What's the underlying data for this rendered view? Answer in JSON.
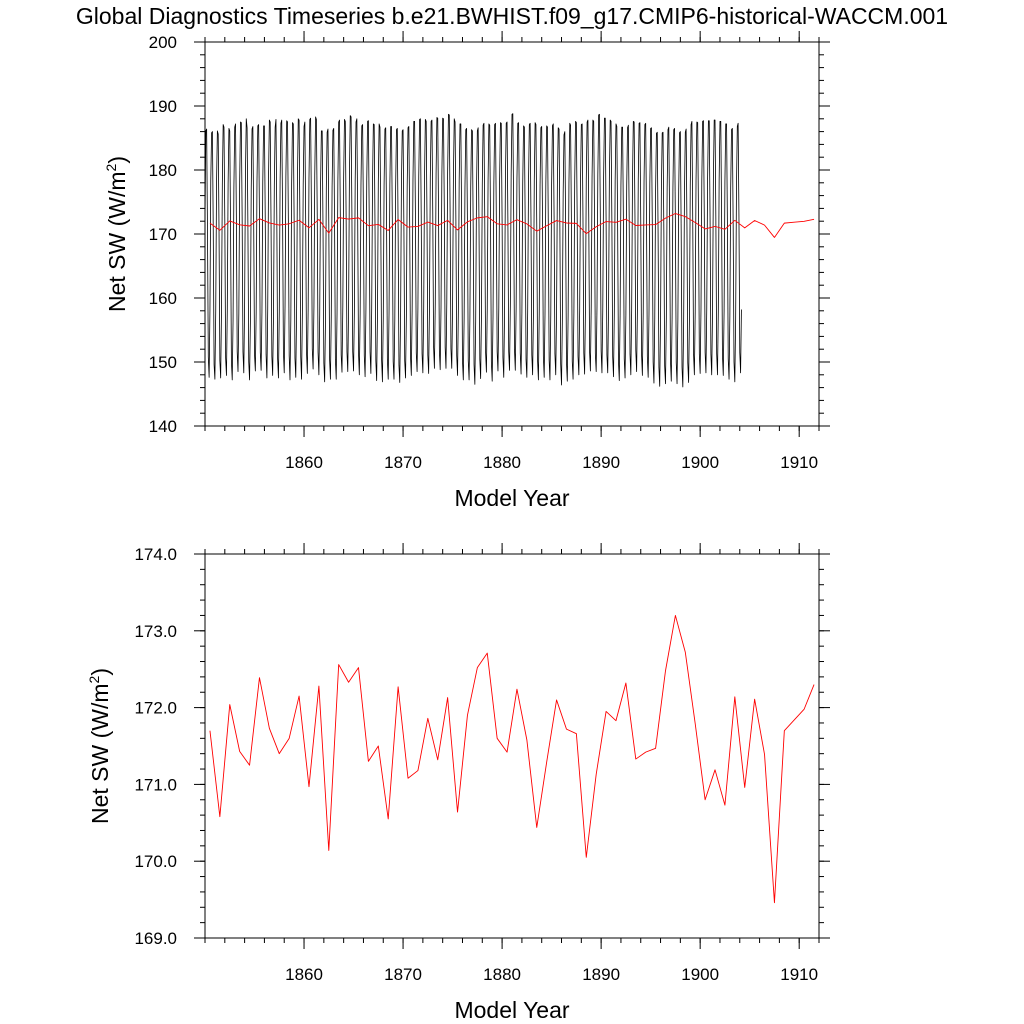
{
  "title": "Global Diagnostics Timeseries b.e21.BWHIST.f09_g17.CMIP6-historical-WACCM.001",
  "colors": {
    "monthly": "#000000",
    "annual": "#ff0000",
    "axis": "#000000"
  },
  "chart_data": [
    {
      "type": "line",
      "xlabel": "Model Year",
      "ylabel": "Net SW (W/m",
      "ylabel_sup": "2",
      "ylabel_tail": ")",
      "xlim": [
        1850,
        1912
      ],
      "ylim": [
        140,
        200
      ],
      "xticks": [
        "1860",
        "1870",
        "1880",
        "1890",
        "1900",
        "1910"
      ],
      "yticks": [
        "140",
        "150",
        "160",
        "170",
        "180",
        "190",
        "200"
      ],
      "series": [
        {
          "color": "#000000",
          "x_start": 1850.0,
          "x_step": 0.0833333,
          "values": [
            171.7,
            186.1,
            186.4,
            170.4,
            150.8,
            147.6,
            158.2,
            178.5,
            185.8,
            186.0,
            170.6,
            149.6,
            147.3,
            157.9,
            178.1,
            186.1,
            185.6,
            170.4,
            150.2,
            147.5,
            158.4,
            177.8,
            187.1,
            186.7,
            172.0,
            150.6,
            147.9,
            158.0,
            177.9,
            186.5,
            186.1,
            170.2,
            150.1,
            147.2,
            156.4,
            177.1,
            186.7,
            187.2,
            172.8,
            151.6,
            148.5,
            157.6,
            178.1,
            187.5,
            187.4,
            172.7,
            151.6,
            148.3,
            159.0,
            179.3,
            188.0,
            186.6,
            171.0,
            150.0,
            147.2,
            156.2,
            177.0,
            186.4,
            186.8,
            171.8,
            151.2,
            148.6,
            157.7,
            178.3,
            186.9,
            187.1,
            172.3,
            151.5,
            148.7,
            157.8,
            178.1,
            186.9,
            186.9,
            172.7,
            151.2,
            147.5,
            158.2,
            179.2,
            187.8,
            187.5,
            172.1,
            150.9,
            147.9,
            157.3,
            177.6,
            186.7,
            187.9,
            172.7,
            150.5,
            147.5,
            157.8,
            178.2,
            187.3,
            187.8,
            173.0,
            151.6,
            148.3,
            158.9,
            179.0,
            187.7,
            187.5,
            172.3,
            151.0,
            147.2,
            156.7,
            177.9,
            187.4,
            187.2,
            172.1,
            150.6,
            147.6,
            157.8,
            178.3,
            188.0,
            187.8,
            172.1,
            150.8,
            147.3,
            157.6,
            177.8,
            186.8,
            187.5,
            172.2,
            151.5,
            148.2,
            158.3,
            178.7,
            187.9,
            188.1,
            173.2,
            152.0,
            148.9,
            158.7,
            179.3,
            188.3,
            187.9,
            172.8,
            151.5,
            148.0,
            157.4,
            177.4,
            186.1,
            186.1,
            171.0,
            149.8,
            146.9,
            156.5,
            177.0,
            185.9,
            186.4,
            171.6,
            150.3,
            147.3,
            157.1,
            177.3,
            186.2,
            186.5,
            171.6,
            150.4,
            147.3,
            157.6,
            178.3,
            187.5,
            187.8,
            172.4,
            151.1,
            148.4,
            158.7,
            178.9,
            187.9,
            187.6,
            172.7,
            151.6,
            148.5,
            158.6,
            179.1,
            188.5,
            188.3,
            173.3,
            151.6,
            148.6,
            157.9,
            178.5,
            187.5,
            188.0,
            172.7,
            151.4,
            148.0,
            157.5,
            177.8,
            186.9,
            187.1,
            172.4,
            151.0,
            147.7,
            158.2,
            178.5,
            187.6,
            187.7,
            172.4,
            151.6,
            148.2,
            158.4,
            178.2,
            187.2,
            187.1,
            171.3,
            150.2,
            147.1,
            157.5,
            178.0,
            187.2,
            186.7,
            171.7,
            150.3,
            146.9,
            156.8,
            177.6,
            186.4,
            186.6,
            171.9,
            150.4,
            147.3,
            157.6,
            177.7,
            186.8,
            186.8,
            171.5,
            150.1,
            147.3,
            156.6,
            177.4,
            186.3,
            186.5,
            170.8,
            149.5,
            146.8,
            157.1,
            177.5,
            186.1,
            186.3,
            171.2,
            150.2,
            147.5,
            157.2,
            177.5,
            186.6,
            186.8,
            171.9,
            150.9,
            147.9,
            158.1,
            178.5,
            187.6,
            187.6,
            172.7,
            151.4,
            148.5,
            158.5,
            178.9,
            187.9,
            188.0,
            172.7,
            151.3,
            148.3,
            158.3,
            178.8,
            187.9,
            187.6,
            172.3,
            151.1,
            148.2,
            158.6,
            178.8,
            187.6,
            187.8,
            173.1,
            152.3,
            149.0,
            159.0,
            179.4,
            188.2,
            188.1,
            172.9,
            151.8,
            148.8,
            158.6,
            179.1,
            188.1,
            188.0,
            173.3,
            152.3,
            149.0,
            159.3,
            179.7,
            188.7,
            188.6,
            173.4,
            152.1,
            149.0,
            158.8,
            179.1,
            188.0,
            187.5,
            172.3,
            151.0,
            147.9,
            158.0,
            178.3,
            187.2,
            187.2,
            171.6,
            150.2,
            147.2,
            156.8,
            177.3,
            186.3,
            186.5,
            171.4,
            150.2,
            147.2,
            157.0,
            177.4,
            186.3,
            186.1,
            170.6,
            149.6,
            146.5,
            156.4,
            177.0,
            186.1,
            186.6,
            171.6,
            150.4,
            147.4,
            157.3,
            177.8,
            187.0,
            187.3,
            172.2,
            151.5,
            148.4,
            158.3,
            178.3,
            187.2,
            187.0,
            171.6,
            150.0,
            147.0,
            157.1,
            177.8,
            187.1,
            187.3,
            172.5,
            151.6,
            148.6,
            158.5,
            178.6,
            187.4,
            187.3,
            172.0,
            150.7,
            147.6,
            157.8,
            178.3,
            187.3,
            187.5,
            172.5,
            151.6,
            148.7,
            158.9,
            179.5,
            188.7,
            188.8,
            173.6,
            152.0,
            148.7,
            158.4,
            178.6,
            187.3,
            187.4,
            172.5,
            151.4,
            148.1,
            157.8,
            178.0,
            186.9,
            186.7,
            171.5,
            150.4,
            147.6,
            157.9,
            178.0,
            187.1,
            187.3,
            172.5,
            151.1,
            148.0,
            157.9,
            178.3,
            187.4,
            187.1,
            171.6,
            150.2,
            147.2,
            157.5,
            177.7,
            186.6,
            186.8,
            172.0,
            150.9,
            147.6,
            157.6,
            177.9,
            186.9,
            186.7,
            171.4,
            150.3,
            147.2,
            157.6,
            177.7,
            186.9,
            187.2,
            172.7,
            151.3,
            148.0,
            157.8,
            178.0,
            186.6,
            186.4,
            171.1,
            149.7,
            146.4,
            156.3,
            176.4,
            185.5,
            186.0,
            171.2,
            150.0,
            147.0,
            157.2,
            177.9,
            187.3,
            187.0,
            171.6,
            150.1,
            147.3,
            157.8,
            178.6,
            187.6,
            187.4,
            172.1,
            150.9,
            148.0,
            158.0,
            178.0,
            187.1,
            187.2,
            172.6,
            151.4,
            148.1,
            158.2,
            178.5,
            187.5,
            187.8,
            172.7,
            151.6,
            148.6,
            158.7,
            178.8,
            187.8,
            187.6,
            172.4,
            151.3,
            148.5,
            158.7,
            179.3,
            188.6,
            188.7,
            173.2,
            151.7,
            148.3,
            158.3,
            178.8,
            188.1,
            188.1,
            172.5,
            151.1,
            148.3,
            158.6,
            178.9,
            187.8,
            187.6,
            172.2,
            150.8,
            147.7,
            157.9,
            178.4,
            187.2,
            186.8,
            171.4,
            150.1,
            147.1,
            157.3,
            177.7,
            186.7,
            186.7,
            171.7,
            150.5,
            147.5,
            157.3,
            177.5,
            186.6,
            187.0,
            172.4,
            151.2,
            148.0,
            158.1,
            178.4,
            187.6,
            187.5,
            172.8,
            151.8,
            148.5,
            158.5,
            178.6,
            187.3,
            187.4,
            172.2,
            151.1,
            147.9,
            157.8,
            178.3,
            187.1,
            187.3,
            172.0,
            150.9,
            147.6,
            157.5,
            177.9,
            186.5,
            186.6,
            171.4,
            150.0,
            146.7,
            156.9,
            177.0,
            185.7,
            185.9,
            170.6,
            149.2,
            146.2,
            156.4,
            176.7,
            185.8,
            185.9,
            170.4,
            149.4,
            146.6,
            156.8,
            177.2,
            186.3,
            186.7,
            171.6,
            150.3,
            147.0,
            156.9,
            177.3,
            186.3,
            186.5,
            171.4,
            149.9,
            146.6,
            156.6,
            176.9,
            185.8,
            186.0,
            170.5,
            149.2,
            146.1,
            156.4,
            176.6,
            185.9,
            186.4,
            171.1,
            149.9,
            146.8,
            156.8,
            177.6,
            187.1,
            187.6,
            172.5,
            151.2,
            148.0,
            157.9,
            178.3,
            187.5,
            187.4,
            172.2,
            151.2,
            148.2,
            158.2,
            178.4,
            187.6,
            187.7,
            172.6,
            151.5,
            148.3,
            158.3,
            178.6,
            187.7,
            187.7,
            172.5,
            151.3,
            148.0,
            157.9,
            178.4,
            187.8,
            187.8,
            172.6,
            151.3,
            148.0,
            158.0,
            178.4,
            187.6,
            187.6,
            172.3,
            151.1,
            147.9,
            157.9,
            178.2,
            187.2,
            187.2,
            171.8,
            150.5,
            147.3,
            157.2,
            177.3,
            186.3,
            186.5,
            171.2,
            150.0,
            146.9,
            156.7,
            177.3,
            186.8,
            187.3,
            172.7,
            151.5,
            148.3,
            158.2
          ]
        },
        {
          "color": "#ff0000",
          "x_start": 1850.5,
          "x_step": 1.0,
          "values": [
            171.7,
            170.58,
            172.04,
            171.43,
            171.25,
            172.39,
            171.73,
            171.4,
            171.6,
            172.15,
            170.97,
            172.28,
            170.14,
            172.56,
            172.33,
            172.52,
            171.3,
            171.5,
            170.55,
            172.27,
            171.08,
            171.18,
            171.86,
            171.32,
            172.13,
            170.64,
            171.9,
            172.52,
            172.71,
            171.6,
            171.42,
            172.24,
            171.58,
            170.44,
            171.29,
            172.1,
            171.72,
            171.66,
            170.05,
            171.13,
            171.95,
            171.83,
            172.32,
            171.33,
            171.42,
            171.47,
            172.48,
            173.2,
            172.72,
            171.79,
            170.8,
            171.19,
            170.73,
            172.14,
            170.96,
            172.11,
            171.39,
            169.46,
            171.7,
            171.84,
            171.98,
            172.3
          ]
        }
      ]
    },
    {
      "type": "line",
      "xlabel": "Model Year",
      "ylabel": "Net SW (W/m",
      "ylabel_sup": "2",
      "ylabel_tail": ")",
      "xlim": [
        1850,
        1912
      ],
      "ylim": [
        169,
        174
      ],
      "xticks": [
        "1860",
        "1870",
        "1880",
        "1890",
        "1900",
        "1910"
      ],
      "yticks": [
        "169.0",
        "170.0",
        "171.0",
        "172.0",
        "173.0",
        "174.0"
      ],
      "series": [
        {
          "color": "#ff0000",
          "x_start": 1850.5,
          "x_step": 1.0,
          "values": [
            171.7,
            170.58,
            172.04,
            171.43,
            171.25,
            172.39,
            171.73,
            171.4,
            171.6,
            172.15,
            170.97,
            172.28,
            170.14,
            172.56,
            172.33,
            172.52,
            171.3,
            171.5,
            170.55,
            172.27,
            171.08,
            171.18,
            171.86,
            171.32,
            172.13,
            170.64,
            171.9,
            172.52,
            172.71,
            171.6,
            171.42,
            172.24,
            171.58,
            170.44,
            171.29,
            172.1,
            171.72,
            171.66,
            170.05,
            171.13,
            171.95,
            171.83,
            172.32,
            171.33,
            171.42,
            171.47,
            172.48,
            173.2,
            172.72,
            171.79,
            170.8,
            171.19,
            170.73,
            172.14,
            170.96,
            172.11,
            171.39,
            169.46,
            171.7,
            171.84,
            171.98,
            172.3
          ]
        }
      ]
    }
  ]
}
